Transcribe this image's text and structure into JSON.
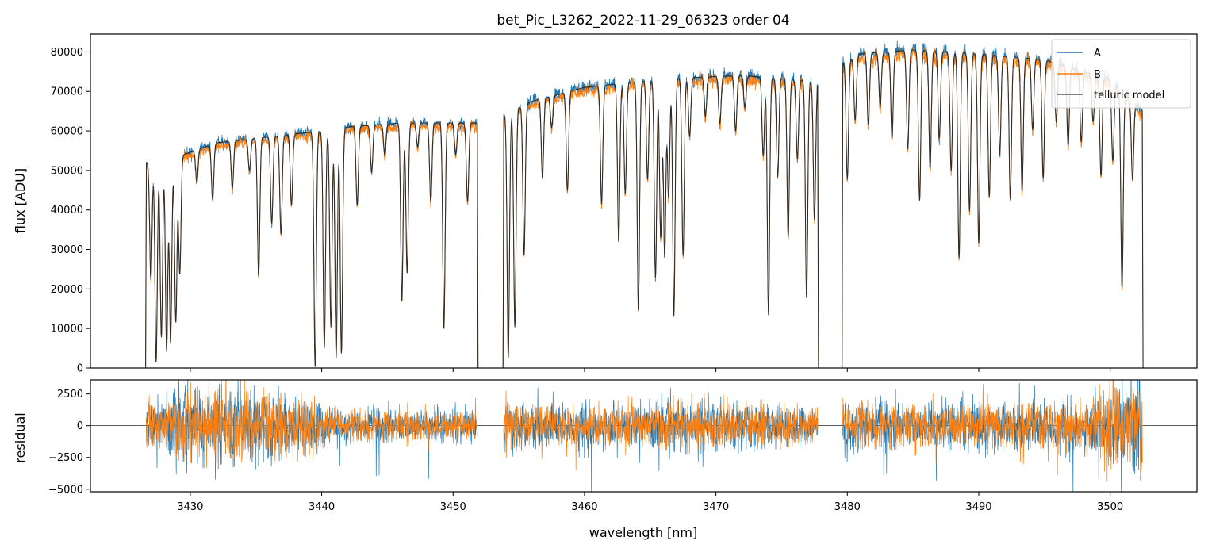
{
  "figure": {
    "title": "bet_Pic_L3262_2022-11-29_06323  order 04",
    "xlabel": "wavelength [nm]"
  },
  "colors": {
    "A": "#1f77b4",
    "B": "#ff7f0e",
    "model": "#222222",
    "frame": "#000000"
  },
  "chart_data": [
    {
      "type": "line",
      "panel": "top",
      "ylabel": "flux [ADU]",
      "xlim": [
        3422.4,
        3506.6
      ],
      "ylim": [
        0,
        84500
      ],
      "x_ticks": [
        3430,
        3440,
        3450,
        3460,
        3470,
        3480,
        3490,
        3500
      ],
      "y_ticks": [
        0,
        10000,
        20000,
        30000,
        40000,
        50000,
        60000,
        70000,
        80000
      ],
      "y_tick_labels": [
        "0",
        "10000",
        "20000",
        "30000",
        "40000",
        "50000",
        "60000",
        "70000",
        "80000"
      ],
      "legend_position": "top-right",
      "legend": [
        {
          "label": "A",
          "color": "#1f77b4"
        },
        {
          "label": "B",
          "color": "#ff7f0e"
        },
        {
          "label": "telluric model",
          "color": "#555555"
        }
      ],
      "segments": [
        {
          "x_start": 3426.6,
          "x_end": 3451.9,
          "continuum": [
            [
              3426.6,
              52000
            ],
            [
              3429.5,
              54000
            ],
            [
              3432,
              57000
            ],
            [
              3436,
              58500
            ],
            [
              3440,
              60000
            ],
            [
              3442,
              61000
            ],
            [
              3446,
              62000
            ],
            [
              3451.9,
              62000
            ]
          ]
        },
        {
          "x_start": 3453.8,
          "x_end": 3477.8,
          "continuum": [
            [
              3453.8,
              64000
            ],
            [
              3456,
              67500
            ],
            [
              3460,
              71000
            ],
            [
              3464,
              72500
            ],
            [
              3468,
              73500
            ],
            [
              3472,
              74000
            ],
            [
              3477.8,
              72500
            ]
          ]
        },
        {
          "x_start": 3479.6,
          "x_end": 3502.5,
          "continuum": [
            [
              3479.6,
              77000
            ],
            [
              3481,
              79500
            ],
            [
              3485,
              80500
            ],
            [
              3490,
              79500
            ],
            [
              3495,
              78000
            ],
            [
              3500,
              73000
            ],
            [
              3502.5,
              65000
            ]
          ]
        }
      ],
      "absorption_lines": [
        [
          3427.0,
          30000
        ],
        [
          3427.4,
          51000
        ],
        [
          3427.8,
          45000
        ],
        [
          3428.2,
          49000
        ],
        [
          3428.5,
          47000
        ],
        [
          3428.9,
          42000
        ],
        [
          3429.2,
          30000
        ],
        [
          3430.5,
          8000
        ],
        [
          3431.7,
          14000
        ],
        [
          3433.2,
          12000
        ],
        [
          3434.5,
          8000
        ],
        [
          3435.2,
          35000
        ],
        [
          3436.2,
          22000
        ],
        [
          3436.9,
          25000
        ],
        [
          3437.7,
          18000
        ],
        [
          3439.5,
          60000
        ],
        [
          3440.2,
          55000
        ],
        [
          3440.7,
          50000
        ],
        [
          3441.1,
          58000
        ],
        [
          3441.5,
          57000
        ],
        [
          3442.7,
          20000
        ],
        [
          3443.8,
          12000
        ],
        [
          3444.8,
          8000
        ],
        [
          3446.1,
          45000
        ],
        [
          3446.5,
          38000
        ],
        [
          3447.3,
          6000
        ],
        [
          3448.3,
          20000
        ],
        [
          3449.3,
          52000
        ],
        [
          3450.2,
          8000
        ],
        [
          3451.1,
          20000
        ],
        [
          3454.2,
          62000
        ],
        [
          3454.7,
          55000
        ],
        [
          3455.4,
          38000
        ],
        [
          3456.8,
          20000
        ],
        [
          3457.5,
          8000
        ],
        [
          3458.7,
          25000
        ],
        [
          3461.3,
          30000
        ],
        [
          3462.6,
          40000
        ],
        [
          3463.1,
          28000
        ],
        [
          3464.1,
          58000
        ],
        [
          3464.8,
          25000
        ],
        [
          3465.4,
          50000
        ],
        [
          3465.8,
          40000
        ],
        [
          3466.1,
          45000
        ],
        [
          3466.4,
          30000
        ],
        [
          3466.8,
          60000
        ],
        [
          3467.5,
          45000
        ],
        [
          3468.0,
          15000
        ],
        [
          3469.2,
          10000
        ],
        [
          3470.3,
          12000
        ],
        [
          3471.5,
          14000
        ],
        [
          3472.2,
          8000
        ],
        [
          3473.6,
          20000
        ],
        [
          3474.0,
          60000
        ],
        [
          3474.7,
          25000
        ],
        [
          3475.5,
          40000
        ],
        [
          3476.2,
          20000
        ],
        [
          3476.9,
          55000
        ],
        [
          3477.5,
          35000
        ],
        [
          3480.0,
          30000
        ],
        [
          3480.6,
          16000
        ],
        [
          3481.6,
          18000
        ],
        [
          3482.5,
          14000
        ],
        [
          3483.4,
          22000
        ],
        [
          3484.6,
          25000
        ],
        [
          3485.5,
          38000
        ],
        [
          3486.3,
          30000
        ],
        [
          3487.0,
          22000
        ],
        [
          3487.9,
          30000
        ],
        [
          3488.5,
          52000
        ],
        [
          3489.3,
          40000
        ],
        [
          3490.0,
          48000
        ],
        [
          3490.8,
          36000
        ],
        [
          3491.6,
          25000
        ],
        [
          3492.4,
          36000
        ],
        [
          3493.3,
          34000
        ],
        [
          3494.1,
          18000
        ],
        [
          3494.9,
          30000
        ],
        [
          3495.9,
          15000
        ],
        [
          3496.8,
          20000
        ],
        [
          3497.8,
          18000
        ],
        [
          3498.7,
          12000
        ],
        [
          3499.3,
          25000
        ],
        [
          3500.2,
          20000
        ],
        [
          3500.9,
          50000
        ],
        [
          3501.7,
          20000
        ]
      ]
    },
    {
      "type": "line",
      "panel": "bottom",
      "ylabel": "residual",
      "xlim": [
        3422.4,
        3506.6
      ],
      "ylim": [
        -5200,
        3600
      ],
      "x_ticks": [
        3430,
        3440,
        3450,
        3460,
        3470,
        3480,
        3490,
        3500
      ],
      "y_ticks": [
        -5000,
        -2500,
        0,
        2500
      ],
      "y_tick_labels": [
        "−5000",
        "−2500",
        "0",
        "2500"
      ],
      "zero_line": true,
      "noise_profile": [
        [
          3426.6,
          900
        ],
        [
          3429,
          1400
        ],
        [
          3434,
          1500
        ],
        [
          3439,
          1100
        ],
        [
          3441,
          700
        ],
        [
          3452,
          600
        ],
        [
          3454,
          1000
        ],
        [
          3457,
          800
        ],
        [
          3463,
          900
        ],
        [
          3467,
          1000
        ],
        [
          3472,
          900
        ],
        [
          3478,
          700
        ],
        [
          3480,
          1000
        ],
        [
          3490,
          900
        ],
        [
          3498,
          1000
        ],
        [
          3500,
          1800
        ],
        [
          3502.5,
          2200
        ]
      ]
    }
  ]
}
